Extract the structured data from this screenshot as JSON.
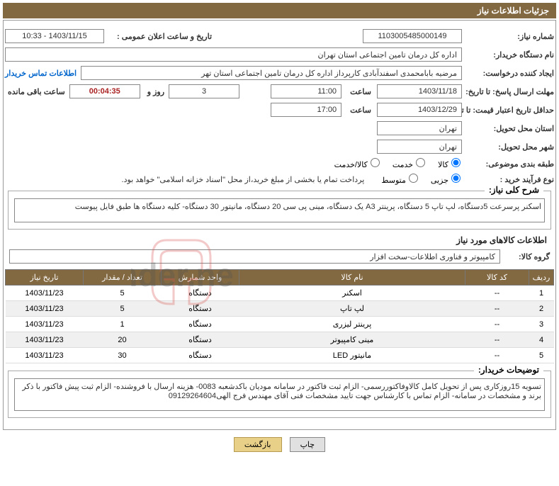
{
  "title": "جزئیات اطلاعات نیاز",
  "labels": {
    "req_no": "شماره نیاز:",
    "announce": "تاریخ و ساعت اعلان عمومی :",
    "buyer_org": "نام دستگاه خریدار:",
    "creator": "ایجاد کننده درخواست:",
    "contact": "اطلاعات تماس خریدار",
    "deadline": "مهلت ارسال پاسخ: تا تاریخ:",
    "time": "ساعت",
    "days_and": "روز و",
    "remaining": "ساعت باقى مانده",
    "validity": "حداقل تاریخ اعتبار قیمت: تا تاریخ:",
    "province": "استان محل تحویل:",
    "city": "شهر محل تحویل:",
    "category": "طبقه بندی موضوعی:",
    "cat_goods": "کالا",
    "cat_service": "خدمت",
    "cat_both": "کالا/خدمت",
    "process": "نوع فرآیند خرید :",
    "proc_partial": "جزیی",
    "proc_medium": "متوسط",
    "proc_note": "پرداخت تمام یا بخشی از مبلغ خرید،از محل \"اسناد خزانه اسلامی\" خواهد بود.",
    "summary": "شرح کلی نیاز:",
    "items_section": "اطلاعات کالاهای مورد نیاز",
    "group": "گروه کالا:",
    "buyer_notes": "توضیحات خریدار:",
    "print": "چاپ",
    "back": "بازگشت"
  },
  "req_no": "1103005485000149",
  "announce": "1403/11/15 - 10:33",
  "buyer_org": "اداره کل درمان تامین اجتماعی استان تهران",
  "creator": "مرضیه بابامحمدی اسفندآبادی کارپرداز اداره کل درمان تامین اجتماعی استان تهر",
  "deadline_date": "1403/11/18",
  "deadline_time": "11:00",
  "deadline_days": "3",
  "deadline_timer": "00:04:35",
  "validity_date": "1403/12/29",
  "validity_time": "17:00",
  "province": "تهران",
  "city": "تهران",
  "summary": "اسکنر پرسرعت 5دستگاه، لپ تاپ 5 دستگاه، پرینتر A3 یک دستگاه، مینی پی سی 20 دستگاه، مانیتور 30 دستگاه- کلیه دستگاه ها طبق فایل پیوست",
  "group": "کامپیوتر و فناوری اطلاعات-سخت افزار",
  "buyer_notes": "تسویه 15روزکاری پس از تحویل کامل کالاوفاکتوررسمی- الزام ثبت فاکتور در سامانه مودیان باکدشعبه 0083- هزینه ارسال با فروشنده- الزام ثبت پیش فاکتور با ذکر برند و مشخصات در سامانه- الزام تماس با کارشناس جهت تایید مشخصات فنی آقای مهندس فرج الهی09129264604",
  "table": {
    "headers": {
      "idx": "رديف",
      "code": "کد کالا",
      "name": "نام کالا",
      "unit": "واحد شمارش",
      "qty": "تعداد / مقدار",
      "date": "تاریخ نیاز"
    },
    "rows": [
      {
        "idx": "1",
        "code": "--",
        "name": "اسکنر",
        "unit": "دستگاه",
        "qty": "5",
        "date": "1403/11/23"
      },
      {
        "idx": "2",
        "code": "--",
        "name": "لپ تاپ",
        "unit": "دستگاه",
        "qty": "5",
        "date": "1403/11/23"
      },
      {
        "idx": "3",
        "code": "--",
        "name": "پرینتر لیزری",
        "unit": "دستگاه",
        "qty": "1",
        "date": "1403/11/23"
      },
      {
        "idx": "4",
        "code": "--",
        "name": "مینی کامپیوتر",
        "unit": "دستگاه",
        "qty": "20",
        "date": "1403/11/23"
      },
      {
        "idx": "5",
        "code": "--",
        "name": "مانیتور LED",
        "unit": "دستگاه",
        "qty": "30",
        "date": "1403/11/23"
      }
    ]
  },
  "colors": {
    "brand": "#836942",
    "link": "#0066cc",
    "timer": "#aa2222",
    "wm_red": "#d9534f",
    "wm_gray": "#555555"
  }
}
